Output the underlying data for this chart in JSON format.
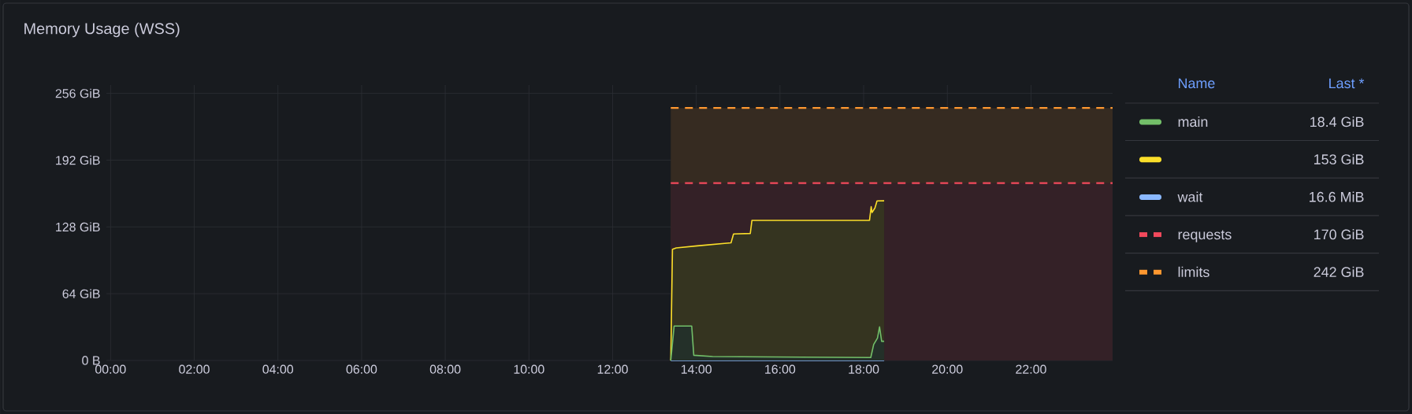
{
  "chart_data": {
    "type": "area",
    "title": "Memory Usage (WSS)",
    "xlim": [
      -0.1,
      23.95
    ],
    "ylim": [
      0,
      264
    ],
    "xticks": [
      {
        "value": 0,
        "label": "00:00"
      },
      {
        "value": 2,
        "label": "02:00"
      },
      {
        "value": 4,
        "label": "04:00"
      },
      {
        "value": 6,
        "label": "06:00"
      },
      {
        "value": 8,
        "label": "08:00"
      },
      {
        "value": 10,
        "label": "10:00"
      },
      {
        "value": 12,
        "label": "12:00"
      },
      {
        "value": 14,
        "label": "14:00"
      },
      {
        "value": 16,
        "label": "16:00"
      },
      {
        "value": 18,
        "label": "18:00"
      },
      {
        "value": 20,
        "label": "20:00"
      },
      {
        "value": 22,
        "label": "22:00"
      }
    ],
    "yticks": [
      {
        "value": 0,
        "label": "0 B"
      },
      {
        "value": 64,
        "label": "64 GiB"
      },
      {
        "value": 128,
        "label": "128 GiB"
      },
      {
        "value": 192,
        "label": "192 GiB"
      },
      {
        "value": 256,
        "label": "256 GiB"
      }
    ],
    "grid": true,
    "legend": "right",
    "marker": "none",
    "legend_title": "Name",
    "annotations": [
      "Last *",
      "18.4 GiB",
      "153 GiB",
      "16.6 MiB",
      "170 GiB",
      "242 GiB"
    ],
    "series": [
      {
        "name": "main",
        "color": "#73bf69",
        "line_style": "solid",
        "x": [
          13.39,
          13.47,
          13.89,
          13.94,
          14.39,
          18.17,
          18.24,
          18.33,
          18.38,
          18.43,
          18.49
        ],
        "values": [
          0,
          33,
          33,
          5,
          3.8,
          2.8,
          15.4,
          21.4,
          32.2,
          18.4,
          18.4
        ]
      },
      {
        "color": "#fade2a",
        "line_style": "solid",
        "x": [
          13.39,
          13.43,
          13.52,
          14.02,
          14.83,
          14.89,
          15.29,
          15.33,
          18.14,
          18.18,
          18.2,
          18.27,
          18.32,
          18.49
        ],
        "values": [
          0,
          106.5,
          107.8,
          109.8,
          112.8,
          121.2,
          121.7,
          134.3,
          134.3,
          147.4,
          141.8,
          146.1,
          152.9,
          153
        ]
      },
      {
        "name": "wait",
        "type": "line",
        "color": "#8ab8ff",
        "line_style": "solid",
        "x": [
          13.39,
          18.49
        ],
        "values": [
          0,
          0
        ]
      },
      {
        "name": "requests",
        "color": "#f2495c",
        "line_style": "dashed",
        "x": [
          13.39,
          23.95
        ],
        "values": [
          170,
          170
        ]
      },
      {
        "name": "limits",
        "color": "#ff9830",
        "line_style": "dashed",
        "x": [
          13.39,
          23.95
        ],
        "values": [
          242,
          242
        ]
      }
    ]
  }
}
